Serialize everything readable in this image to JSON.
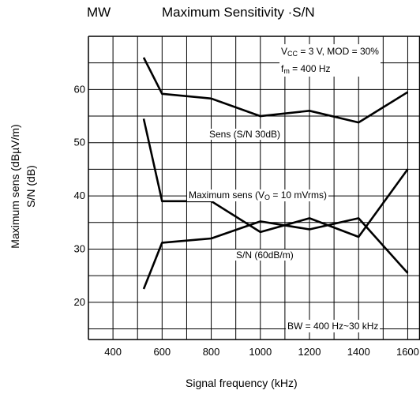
{
  "band": "MW",
  "chart_data": {
    "type": "line",
    "title": "Maximum Sensitivity ·S/N",
    "xlabel": "Signal frequency   (kHz)",
    "ylabel_line1": "Maximum sens   (dBµV/m)",
    "ylabel_line2": "S/N   (dB)",
    "xlim": [
      300,
      1650
    ],
    "ylim": [
      13,
      70
    ],
    "x_ticks": [
      400,
      600,
      800,
      1000,
      1200,
      1400,
      1600
    ],
    "y_ticks": [
      20,
      30,
      40,
      50,
      60
    ],
    "x_grid_minor": 100,
    "y_grid_minor": 5,
    "grid": true,
    "series": [
      {
        "name": "Sens (S/N 30dB)",
        "x": [
          525,
          600,
          800,
          1000,
          1200,
          1400,
          1600
        ],
        "y": [
          66,
          59.2,
          58.3,
          55,
          56,
          53.8,
          59.5
        ]
      },
      {
        "name": "Maximum sens (Vo = 10 mVrms)",
        "x": [
          525,
          600,
          800,
          1000,
          1200,
          1400,
          1600
        ],
        "y": [
          54.5,
          39,
          39,
          33.2,
          35.8,
          32.3,
          45
        ]
      },
      {
        "name": "S/N (60dB/m)",
        "x": [
          525,
          600,
          800,
          1000,
          1200,
          1400,
          1600
        ],
        "y": [
          22.5,
          31.2,
          32,
          35.2,
          33.7,
          35.8,
          25.5
        ]
      }
    ]
  },
  "conditions": {
    "vcc_prefix": "V",
    "vcc_sub": "CC",
    "vcc_rest": " = 3 V, MOD = 30%",
    "fm_prefix": "f",
    "fm_sub": "m",
    "fm_rest": " = 400 Hz"
  },
  "bandwidth_note": "BW = 400 Hz~30 kHz",
  "labels": {
    "sens": "Sens (S/N 30dB)",
    "max_prefix": "Maximum sens (V",
    "max_sub": "O",
    "max_rest": " = 10 mVrms)",
    "sn": "S/N (60dB/m)"
  },
  "colors": {
    "line": "#000000",
    "grid": "#000000",
    "background": "#ffffff"
  }
}
